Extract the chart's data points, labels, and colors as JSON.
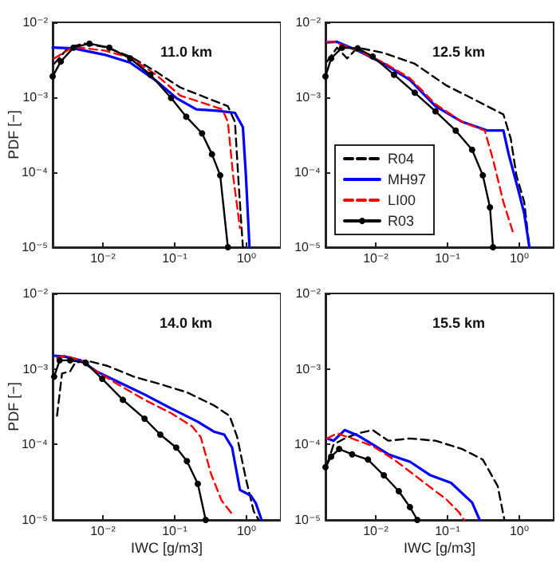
{
  "chart_data": [
    {
      "type": "line",
      "title": "11.0 km",
      "ylabel": "PDF [−]",
      "log": "xy",
      "legend": false,
      "xlim": [
        0.002,
        3
      ],
      "ylim": [
        1e-05,
        0.01
      ],
      "xticks": [
        {
          "value": 0.01,
          "label": "10⁻²"
        },
        {
          "value": 0.1,
          "label": "10⁻¹"
        },
        {
          "value": 1,
          "label": "10⁰"
        }
      ],
      "yticks": [
        {
          "value": 1e-05,
          "label": "10⁻⁵"
        },
        {
          "value": 0.0001,
          "label": "10⁻⁴"
        },
        {
          "value": 0.001,
          "label": "10⁻³"
        },
        {
          "value": 0.01,
          "label": "10⁻²"
        }
      ],
      "series": [
        {
          "color": "#000000",
          "line_style": "dashed",
          "marker": "none",
          "x": [
            0.0021,
            0.0033,
            0.0055,
            0.0105,
            0.024,
            0.055,
            0.12,
            0.28,
            0.55,
            0.69,
            0.78,
            0.89
          ],
          "values": [
            0.0028,
            0.0046,
            0.0052,
            0.0047,
            0.0035,
            0.0022,
            0.00135,
            0.00098,
            0.00076,
            0.00047,
            6.6e-05,
            1e-05
          ]
        },
        {
          "color": "#0000ff",
          "line_style": "solid",
          "marker": "none",
          "x": [
            0.002,
            0.0039,
            0.0105,
            0.024,
            0.055,
            0.105,
            0.2,
            0.39,
            0.69,
            0.89,
            0.98,
            1.1
          ],
          "values": [
            0.0046,
            0.0045,
            0.0037,
            0.0029,
            0.00166,
            0.00098,
            0.00069,
            0.00066,
            0.00062,
            0.0004,
            9.1e-05,
            1e-05
          ]
        },
        {
          "color": "#ff0000",
          "line_style": "dashed",
          "marker": "none",
          "x": [
            0.0021,
            0.0039,
            0.0105,
            0.024,
            0.055,
            0.12,
            0.28,
            0.46,
            0.55,
            0.65,
            0.81
          ],
          "values": [
            0.0033,
            0.0047,
            0.0042,
            0.0034,
            0.002,
            0.00105,
            0.00081,
            0.00069,
            0.00047,
            9.1e-05,
            1.8e-05
          ]
        },
        {
          "color": "#000000",
          "line_style": "solid",
          "marker": "circle",
          "x": [
            0.002,
            0.0026,
            0.0039,
            0.0065,
            0.0123,
            0.024,
            0.046,
            0.089,
            0.145,
            0.24,
            0.33,
            0.43,
            0.55
          ],
          "values": [
            0.0019,
            0.003,
            0.0046,
            0.0052,
            0.0046,
            0.0033,
            0.002,
            0.00098,
            0.00055,
            0.00033,
            0.000174,
            9.1e-05,
            1e-05
          ]
        }
      ]
    },
    {
      "type": "line",
      "title": "12.5 km",
      "log": "xy",
      "legend": "bottom left",
      "xlim": [
        0.002,
        3
      ],
      "ylim": [
        1e-05,
        0.01
      ],
      "xticks": [
        {
          "value": 0.01,
          "label": "10⁻²"
        },
        {
          "value": 0.1,
          "label": "10⁻¹"
        },
        {
          "value": 1,
          "label": "10⁰"
        }
      ],
      "yticks": [
        {
          "value": 1e-05,
          "label": "10⁻⁵"
        },
        {
          "value": 0.0001,
          "label": "10⁻⁴"
        },
        {
          "value": 0.001,
          "label": "10⁻³"
        },
        {
          "value": 0.01,
          "label": "10⁻²"
        }
      ],
      "series": [
        {
          "name": "R04",
          "color": "#000000",
          "line_style": "dashed",
          "marker": "none",
          "x": [
            0.0021,
            0.0029,
            0.004,
            0.0056,
            0.013,
            0.035,
            0.095,
            0.26,
            0.6,
            0.76,
            0.91,
            1.17,
            1.38
          ],
          "values": [
            0.003,
            0.0046,
            0.0033,
            0.0046,
            0.0039,
            0.0028,
            0.00145,
            0.00089,
            0.00059,
            0.00028,
            9.1e-05,
            4e-05,
            1e-05
          ]
        },
        {
          "name": "MH97",
          "color": "#0000ff",
          "line_style": "solid",
          "marker": "none",
          "x": [
            0.0021,
            0.0029,
            0.0056,
            0.013,
            0.03,
            0.068,
            0.16,
            0.36,
            0.6,
            0.71,
            0.98,
            1.17,
            1.38
          ],
          "values": [
            0.0054,
            0.0055,
            0.0042,
            0.0028,
            0.0017,
            0.00076,
            0.00047,
            0.00036,
            0.00036,
            0.000174,
            5.5e-05,
            2.8e-05,
            1e-05
          ]
        },
        {
          "name": "LI00",
          "color": "#ff0000",
          "line_style": "dashed",
          "marker": "none",
          "x": [
            0.0021,
            0.0026,
            0.0056,
            0.013,
            0.03,
            0.068,
            0.16,
            0.33,
            0.43,
            0.6,
            0.83
          ],
          "values": [
            0.0055,
            0.0055,
            0.0042,
            0.0029,
            0.0018,
            0.00081,
            0.00047,
            0.00036,
            0.000148,
            4e-05,
            1.5e-05
          ]
        },
        {
          "name": "R03",
          "color": "#000000",
          "line_style": "solid",
          "marker": "circle",
          "x": [
            0.002,
            0.0024,
            0.0034,
            0.0056,
            0.0091,
            0.018,
            0.035,
            0.068,
            0.13,
            0.22,
            0.31,
            0.39,
            0.43
          ],
          "values": [
            0.0019,
            0.0033,
            0.0046,
            0.0045,
            0.0035,
            0.002,
            0.00115,
            0.00065,
            0.00036,
            0.0002,
            9.1e-05,
            3.4e-05,
            1e-05
          ]
        }
      ]
    },
    {
      "type": "line",
      "title": "14.0 km",
      "xlabel": "IWC [g/m3]",
      "ylabel": "PDF [−]",
      "log": "xy",
      "legend": false,
      "xlim": [
        0.002,
        3
      ],
      "ylim": [
        1e-05,
        0.01
      ],
      "xticks": [
        {
          "value": 0.01,
          "label": "10⁻²"
        },
        {
          "value": 0.1,
          "label": "10⁻¹"
        },
        {
          "value": 1,
          "label": "10⁰"
        }
      ],
      "yticks": [
        {
          "value": 1e-05,
          "label": "10⁻⁵"
        },
        {
          "value": 0.0001,
          "label": "10⁻⁴"
        },
        {
          "value": 0.001,
          "label": "10⁻³"
        },
        {
          "value": 0.01,
          "label": "10⁻²"
        }
      ],
      "series": [
        {
          "color": "#000000",
          "line_style": "dashed",
          "marker": "none",
          "x": [
            0.0023,
            0.0027,
            0.0035,
            0.0041,
            0.0058,
            0.0115,
            0.027,
            0.063,
            0.148,
            0.35,
            0.58,
            0.74,
            0.98,
            1.26,
            1.48
          ],
          "values": [
            0.00024,
            0.00087,
            0.00093,
            0.0012,
            0.0013,
            0.0011,
            0.00079,
            0.00063,
            0.00049,
            0.00033,
            0.00024,
            0.000126,
            3.5e-05,
            1.3e-05,
            1e-05
          ]
        },
        {
          "color": "#0000ff",
          "line_style": "solid",
          "marker": "none",
          "x": [
            0.0021,
            0.003,
            0.0049,
            0.0081,
            0.016,
            0.038,
            0.089,
            0.21,
            0.35,
            0.49,
            0.63,
            0.81,
            1.15,
            1.35,
            1.62
          ],
          "values": [
            0.0015,
            0.00145,
            0.0013,
            0.00093,
            0.00068,
            0.00046,
            0.0003,
            0.0002,
            0.000148,
            0.000135,
            9.1e-05,
            2.5e-05,
            2.1e-05,
            1.66e-05,
            1e-05
          ]
        },
        {
          "color": "#ff0000",
          "line_style": "dashed",
          "marker": "none",
          "x": [
            0.0023,
            0.003,
            0.0049,
            0.0081,
            0.016,
            0.038,
            0.089,
            0.174,
            0.23,
            0.32,
            0.45,
            0.63
          ],
          "values": [
            0.0014,
            0.0015,
            0.0013,
            0.00093,
            0.00063,
            0.00039,
            0.00026,
            0.000174,
            0.000126,
            4.1e-05,
            1.8e-05,
            1.2e-05
          ]
        },
        {
          "color": "#000000",
          "line_style": "solid",
          "marker": "circle",
          "x": [
            0.0021,
            0.0025,
            0.0035,
            0.0058,
            0.0098,
            0.019,
            0.038,
            0.063,
            0.105,
            0.148,
            0.21,
            0.27
          ],
          "values": [
            0.00079,
            0.0013,
            0.0013,
            0.0012,
            0.00074,
            0.00039,
            0.00022,
            0.000135,
            9.1e-05,
            6e-05,
            3e-05,
            1e-05
          ]
        }
      ]
    },
    {
      "type": "line",
      "title": "15.5 km",
      "xlabel": "IWC [g/m3]",
      "log": "xy",
      "legend": false,
      "xlim": [
        0.002,
        3
      ],
      "ylim": [
        1e-05,
        0.01
      ],
      "xticks": [
        {
          "value": 0.01,
          "label": "10⁻²"
        },
        {
          "value": 0.1,
          "label": "10⁻¹"
        },
        {
          "value": 1,
          "label": "10⁰"
        }
      ],
      "yticks": [
        {
          "value": 1e-05,
          "label": "10⁻⁵"
        },
        {
          "value": 0.0001,
          "label": "10⁻⁴"
        },
        {
          "value": 0.001,
          "label": "10⁻³"
        },
        {
          "value": 0.01,
          "label": "10⁻²"
        }
      ],
      "series": [
        {
          "color": "#000000",
          "line_style": "dashed",
          "marker": "none",
          "x": [
            0.0021,
            0.0026,
            0.0037,
            0.0056,
            0.0091,
            0.015,
            0.03,
            0.068,
            0.16,
            0.31,
            0.5,
            0.62
          ],
          "values": [
            5.4e-05,
            0.0001,
            0.00012,
            0.00014,
            0.000155,
            0.000112,
            0.00012,
            0.000112,
            8.7e-05,
            6.3e-05,
            2.8e-05,
            1e-05
          ]
        },
        {
          "color": "#0000ff",
          "line_style": "solid",
          "marker": "none",
          "x": [
            0.0021,
            0.0026,
            0.0037,
            0.0056,
            0.0091,
            0.015,
            0.03,
            0.058,
            0.112,
            0.22,
            0.28
          ],
          "values": [
            0.00012,
            0.000112,
            0.000155,
            0.000132,
            0.0001,
            7.4e-05,
            5.9e-05,
            3.9e-05,
            3.1e-05,
            1.7e-05,
            1e-05
          ]
        },
        {
          "color": "#ff0000",
          "line_style": "dashed",
          "marker": "none",
          "x": [
            0.0021,
            0.0029,
            0.0047,
            0.0091,
            0.018,
            0.035,
            0.068,
            0.095,
            0.145,
            0.17
          ],
          "values": [
            0.00012,
            0.00014,
            0.00012,
            9.5e-05,
            6.3e-05,
            3.9e-05,
            2.4e-05,
            1.9e-05,
            1.26e-05,
            1e-05
          ]
        },
        {
          "color": "#000000",
          "line_style": "solid",
          "marker": "circle",
          "x": [
            0.002,
            0.0024,
            0.0031,
            0.0047,
            0.0078,
            0.013,
            0.021,
            0.03,
            0.038
          ],
          "values": [
            5e-05,
            6.9e-05,
            8.7e-05,
            7.4e-05,
            6.3e-05,
            3.9e-05,
            2.4e-05,
            1.48e-05,
            1e-05
          ]
        }
      ]
    }
  ]
}
